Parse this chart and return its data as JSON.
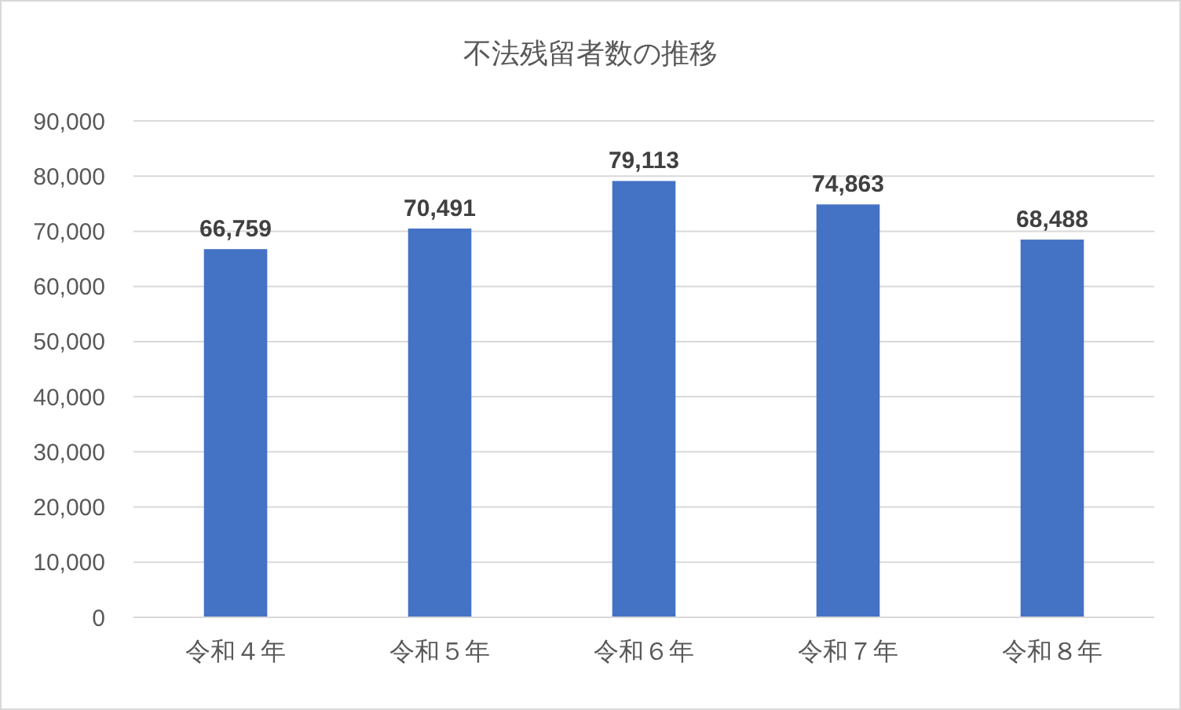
{
  "chart_data": {
    "type": "bar",
    "title": "不法残留者数の推移",
    "categories": [
      "令和４年",
      "令和５年",
      "令和６年",
      "令和７年",
      "令和８年"
    ],
    "values": [
      66759,
      70491,
      79113,
      74863,
      68488
    ],
    "color": "#4472c4",
    "ylim": [
      0,
      90000
    ],
    "yticks": [
      {
        "value": 0,
        "label": "0"
      },
      {
        "value": 10000,
        "label": "10,000"
      },
      {
        "value": 20000,
        "label": "20,000"
      },
      {
        "value": 30000,
        "label": "30,000"
      },
      {
        "value": 40000,
        "label": "40,000"
      },
      {
        "value": 50000,
        "label": "50,000"
      },
      {
        "value": 60000,
        "label": "60,000"
      },
      {
        "value": 70000,
        "label": "70,000"
      },
      {
        "value": 80000,
        "label": "80,000"
      },
      {
        "value": 90000,
        "label": "90,000"
      }
    ],
    "value_labels": [
      "66,759",
      "70,491",
      "79,113",
      "74,863",
      "68,488"
    ],
    "grid": true
  }
}
